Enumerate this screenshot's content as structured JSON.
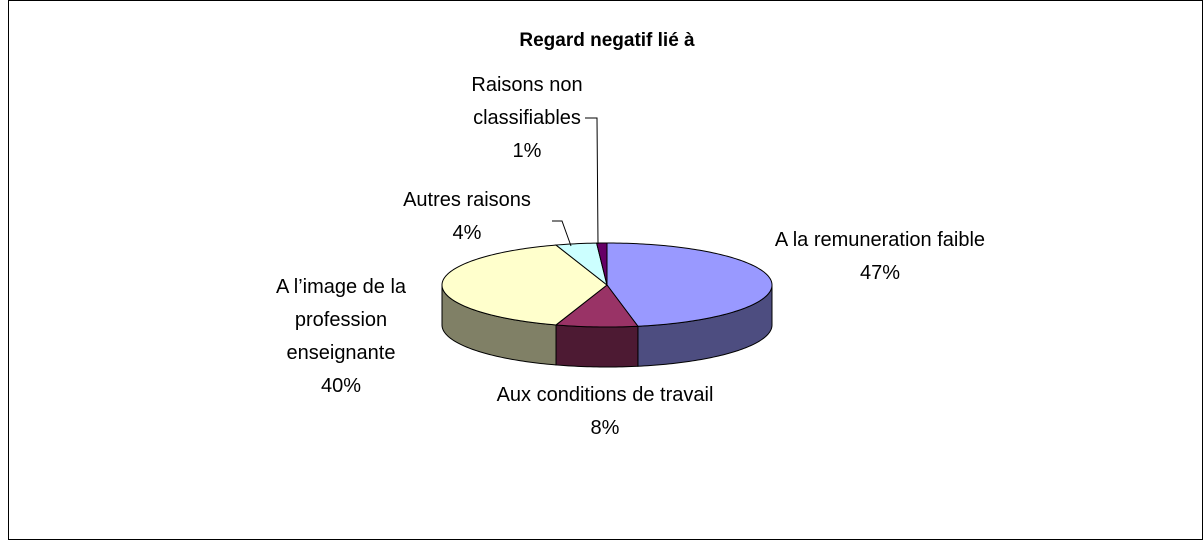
{
  "chart_data": {
    "type": "pie3d",
    "title": "Regard negatif lié à",
    "categories": [
      "A la remuneration faible",
      "Aux conditions de travail",
      "A l’image de la profession enseignante",
      "Autres raisons",
      "Raisons non classifiables"
    ],
    "values": [
      47,
      8,
      40,
      4,
      1
    ],
    "value_labels": [
      "47%",
      "8%",
      "40%",
      "4%",
      "1%"
    ],
    "colors": [
      "#9999ff",
      "#993366",
      "#ffffcc",
      "#ccffff",
      "#660066"
    ]
  }
}
